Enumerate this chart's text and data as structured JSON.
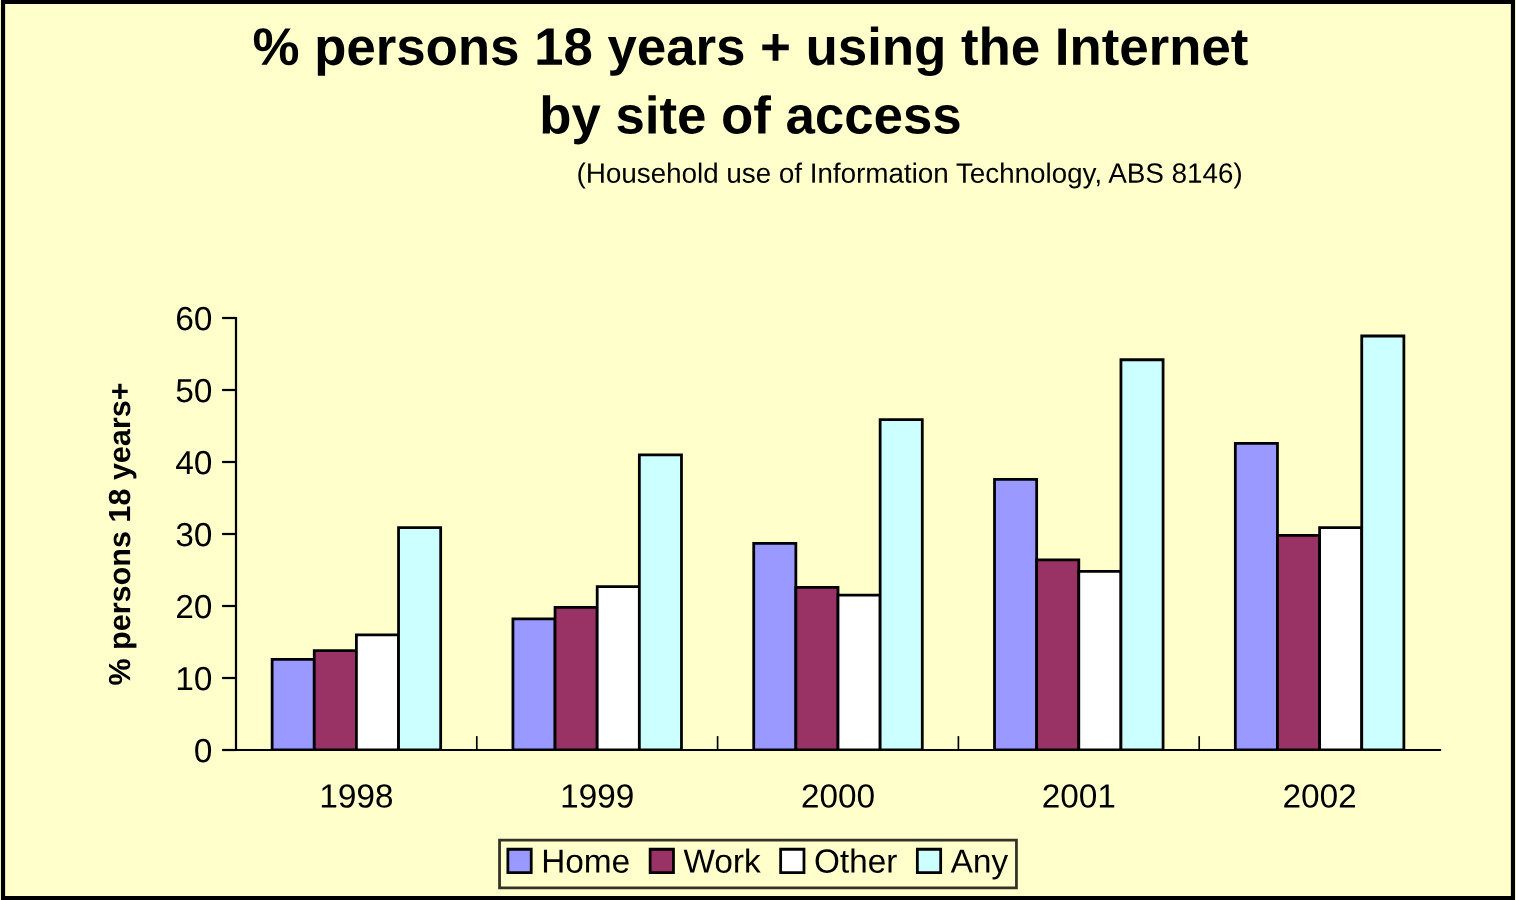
{
  "chart_data": {
    "type": "bar",
    "title": "% persons 18 years + using the Internet\nby site of access",
    "subtitle": "(Household use of Information Technology, ABS 8146)",
    "ylabel": "% persons 18 years+",
    "categories": [
      "1998",
      "1999",
      "2000",
      "2001",
      "2002"
    ],
    "series": [
      {
        "name": "Home",
        "color": "#9999ff",
        "values": [
          12.6,
          18.2,
          28.7,
          37.6,
          42.6
        ]
      },
      {
        "name": "Work",
        "color": "#993366",
        "values": [
          13.8,
          19.8,
          22.6,
          26.4,
          29.8
        ]
      },
      {
        "name": "Other",
        "color": "#ffffff",
        "values": [
          16.0,
          22.7,
          21.5,
          24.8,
          30.9
        ]
      },
      {
        "name": "Any",
        "color": "#ccffff",
        "values": [
          30.9,
          41.0,
          45.9,
          54.2,
          57.5
        ]
      }
    ],
    "ylim": [
      0,
      60
    ],
    "yticks": [
      0,
      10,
      20,
      30,
      40,
      50,
      60
    ],
    "grid": false,
    "legend": "bottom"
  }
}
